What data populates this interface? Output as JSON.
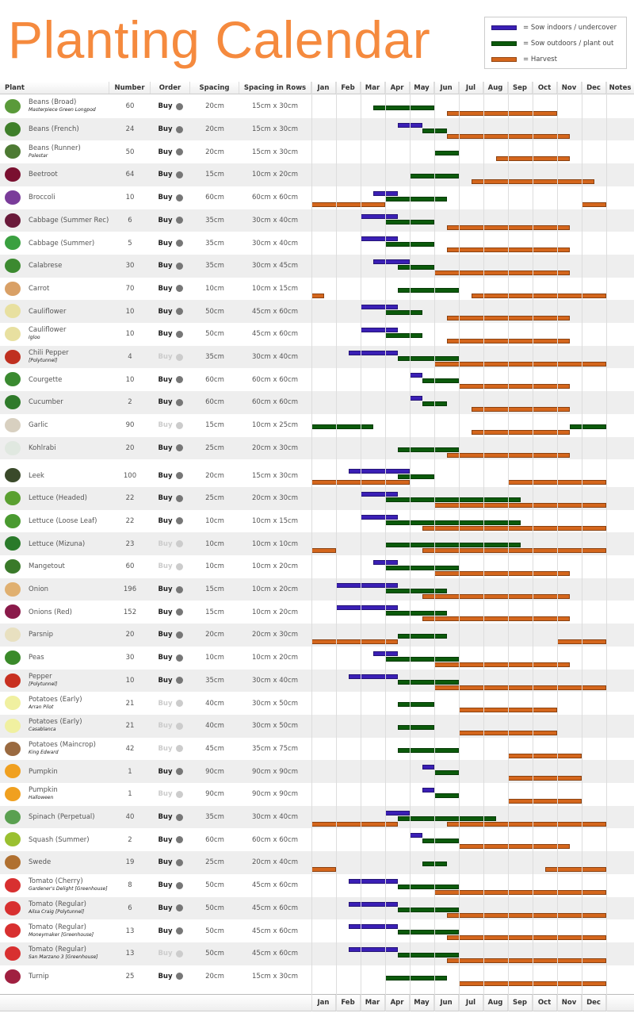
{
  "title": "Planting Calendar",
  "legend": [
    {
      "label": "= Sow indoors / undercover",
      "color": "#3a1fb5"
    },
    {
      "label": "= Sow outdoors / plant out",
      "color": "#0b5a0b"
    },
    {
      "label": "= Harvest",
      "color": "#d4661c"
    }
  ],
  "columns": {
    "plant": "Plant",
    "number": "Number",
    "order": "Order",
    "spacing": "Spacing",
    "rows": "Spacing in Rows",
    "notes": "Notes"
  },
  "months": [
    "Jan",
    "Feb",
    "Mar",
    "Apr",
    "May",
    "Jun",
    "Jul",
    "Aug",
    "Sep",
    "Oct",
    "Nov",
    "Dec"
  ],
  "buy_label": "Buy",
  "colors": {
    "sow_in": "#3a1fb5",
    "sow_out": "#0b5a0b",
    "harvest": "#d4661c",
    "title": "#f58a3e"
  },
  "chart_data": {
    "type": "gantt",
    "unit": "month position (1 = start of Jan, 13 = end of Dec)",
    "rows": [
      {
        "name": "Beans (Broad)",
        "sub": "Masterpiece Green Longpod",
        "number": "60",
        "buy": true,
        "spacing": "20cm",
        "rows": "15cm x 30cm",
        "icon": "broad-bean",
        "ic": "#5a9a3a",
        "in": [],
        "out": [
          [
            3.5,
            6
          ]
        ],
        "h": [
          [
            6.5,
            11
          ]
        ]
      },
      {
        "name": "Beans (French)",
        "sub": "",
        "number": "24",
        "buy": true,
        "spacing": "20cm",
        "rows": "15cm x 30cm",
        "icon": "french-bean",
        "ic": "#3f7f2a",
        "in": [
          [
            4.5,
            5.5
          ]
        ],
        "out": [
          [
            5.5,
            6.5
          ]
        ],
        "h": [
          [
            6.5,
            11.5
          ]
        ]
      },
      {
        "name": "Beans (Runner)",
        "sub": "Polestar",
        "number": "50",
        "buy": true,
        "spacing": "20cm",
        "rows": "15cm x 30cm",
        "icon": "runner-bean",
        "ic": "#4d7a33",
        "in": [],
        "out": [
          [
            6,
            7
          ]
        ],
        "h": [
          [
            8.5,
            11.5
          ]
        ]
      },
      {
        "name": "Beetroot",
        "sub": "",
        "number": "64",
        "buy": true,
        "spacing": "15cm",
        "rows": "10cm x 20cm",
        "icon": "beetroot",
        "ic": "#7a1030",
        "in": [],
        "out": [
          [
            5,
            7
          ]
        ],
        "h": [
          [
            7.5,
            12.5
          ]
        ]
      },
      {
        "name": "Broccoli",
        "sub": "",
        "number": "10",
        "buy": true,
        "spacing": "60cm",
        "rows": "60cm x 60cm",
        "icon": "broccoli",
        "ic": "#7a3c9a",
        "in": [
          [
            3.5,
            4.5
          ]
        ],
        "out": [
          [
            4,
            6.5
          ]
        ],
        "h": [
          [
            1,
            4
          ],
          [
            12,
            13
          ]
        ]
      },
      {
        "name": "Cabbage (Summer Rec)",
        "sub": "",
        "number": "6",
        "buy": true,
        "spacing": "35cm",
        "rows": "30cm x 40cm",
        "icon": "red-cabbage",
        "ic": "#6a1a3a",
        "in": [
          [
            3,
            4.5
          ]
        ],
        "out": [
          [
            4,
            6
          ]
        ],
        "h": [
          [
            6.5,
            11.5
          ]
        ]
      },
      {
        "name": "Cabbage (Summer)",
        "sub": "",
        "number": "5",
        "buy": true,
        "spacing": "35cm",
        "rows": "30cm x 40cm",
        "icon": "cabbage",
        "ic": "#3aa040",
        "in": [
          [
            3,
            4.5
          ]
        ],
        "out": [
          [
            4,
            6
          ]
        ],
        "h": [
          [
            6.5,
            11.5
          ]
        ]
      },
      {
        "name": "Calabrese",
        "sub": "",
        "number": "30",
        "buy": true,
        "spacing": "35cm",
        "rows": "30cm x 45cm",
        "icon": "calabrese",
        "ic": "#3c8a30",
        "in": [
          [
            3.5,
            5
          ]
        ],
        "out": [
          [
            4.5,
            6
          ]
        ],
        "h": [
          [
            6,
            11.5
          ]
        ]
      },
      {
        "name": "Carrot",
        "sub": "",
        "number": "70",
        "buy": true,
        "spacing": "10cm",
        "rows": "10cm x 15cm",
        "icon": "carrot",
        "ic": "#d9a066",
        "in": [],
        "out": [
          [
            4.5,
            7
          ]
        ],
        "h": [
          [
            1,
            1.5
          ],
          [
            7.5,
            13
          ]
        ]
      },
      {
        "name": "Cauliflower",
        "sub": "",
        "number": "10",
        "buy": true,
        "spacing": "50cm",
        "rows": "45cm x 60cm",
        "icon": "cauliflower",
        "ic": "#e8e0a0",
        "in": [
          [
            3,
            4.5
          ]
        ],
        "out": [
          [
            4,
            5.5
          ]
        ],
        "h": [
          [
            6.5,
            11.5
          ]
        ]
      },
      {
        "name": "Cauliflower",
        "sub": "Igloo",
        "number": "10",
        "buy": true,
        "spacing": "50cm",
        "rows": "45cm x 60cm",
        "icon": "cauliflower",
        "ic": "#e8e0a0",
        "in": [
          [
            3,
            4.5
          ]
        ],
        "out": [
          [
            4,
            5.5
          ]
        ],
        "h": [
          [
            6.5,
            11.5
          ]
        ]
      },
      {
        "name": "Chili Pepper",
        "sub": "[Polytunnel]",
        "number": "4",
        "buy": false,
        "spacing": "35cm",
        "rows": "30cm x 40cm",
        "icon": "chili",
        "ic": "#c03020",
        "in": [
          [
            2.5,
            4.5
          ]
        ],
        "out": [
          [
            4.5,
            7
          ]
        ],
        "h": [
          [
            6,
            13
          ]
        ]
      },
      {
        "name": "Courgette",
        "sub": "",
        "number": "10",
        "buy": true,
        "spacing": "60cm",
        "rows": "60cm x 60cm",
        "icon": "courgette",
        "ic": "#3a8a30",
        "in": [
          [
            5,
            5.5
          ]
        ],
        "out": [
          [
            5.5,
            7
          ]
        ],
        "h": [
          [
            7,
            11.5
          ]
        ]
      },
      {
        "name": "Cucumber",
        "sub": "",
        "number": "2",
        "buy": true,
        "spacing": "60cm",
        "rows": "60cm x 60cm",
        "icon": "cucumber",
        "ic": "#2f7a2a",
        "in": [
          [
            5,
            5.5
          ]
        ],
        "out": [
          [
            5.5,
            6.5
          ]
        ],
        "h": [
          [
            7.5,
            11.5
          ]
        ]
      },
      {
        "name": "Garlic",
        "sub": "",
        "number": "90",
        "buy": false,
        "spacing": "15cm",
        "rows": "10cm x 25cm",
        "icon": "garlic",
        "ic": "#d8d0c0",
        "in": [],
        "out": [
          [
            1,
            3.5
          ],
          [
            11.5,
            13
          ]
        ],
        "h": [
          [
            7.5,
            11.5
          ]
        ]
      },
      {
        "name": "Kohlrabi",
        "sub": "",
        "number": "20",
        "buy": true,
        "spacing": "25cm",
        "rows": "20cm x 30cm",
        "icon": "kohlrabi",
        "ic": "#e0e8e0",
        "in": [],
        "out": [
          [
            4.5,
            7
          ]
        ],
        "h": [
          [
            6.5,
            11.5
          ]
        ]
      },
      {
        "name": "Leek",
        "sub": "",
        "number": "100",
        "buy": true,
        "spacing": "20cm",
        "rows": "15cm x 30cm",
        "icon": "leek",
        "ic": "#3a4a2a",
        "in": [
          [
            2.5,
            5
          ]
        ],
        "out": [
          [
            4.5,
            6
          ]
        ],
        "h": [
          [
            1,
            5
          ],
          [
            9,
            13
          ]
        ]
      },
      {
        "name": "Lettuce (Headed)",
        "sub": "",
        "number": "22",
        "buy": true,
        "spacing": "25cm",
        "rows": "20cm x 30cm",
        "icon": "lettuce",
        "ic": "#5aa030",
        "in": [
          [
            3,
            4.5
          ]
        ],
        "out": [
          [
            4,
            9.5
          ]
        ],
        "h": [
          [
            6,
            13
          ]
        ]
      },
      {
        "name": "Lettuce (Loose Leaf)",
        "sub": "",
        "number": "22",
        "buy": true,
        "spacing": "10cm",
        "rows": "10cm x 15cm",
        "icon": "lettuce-leaf",
        "ic": "#4a9a30",
        "in": [
          [
            3,
            4.5
          ]
        ],
        "out": [
          [
            4,
            9.5
          ]
        ],
        "h": [
          [
            5.5,
            13
          ]
        ]
      },
      {
        "name": "Lettuce (Mizuna)",
        "sub": "",
        "number": "23",
        "buy": false,
        "spacing": "10cm",
        "rows": "10cm x 10cm",
        "icon": "mizuna",
        "ic": "#2a7a2a",
        "in": [],
        "out": [
          [
            4,
            9.5
          ]
        ],
        "h": [
          [
            1,
            2
          ],
          [
            5.5,
            13
          ]
        ]
      },
      {
        "name": "Mangetout",
        "sub": "",
        "number": "60",
        "buy": false,
        "spacing": "10cm",
        "rows": "10cm x 20cm",
        "icon": "mangetout",
        "ic": "#3a7a2a",
        "in": [
          [
            3.5,
            4.5
          ]
        ],
        "out": [
          [
            4,
            7
          ]
        ],
        "h": [
          [
            6,
            11.5
          ]
        ]
      },
      {
        "name": "Onion",
        "sub": "",
        "number": "196",
        "buy": true,
        "spacing": "15cm",
        "rows": "10cm x 20cm",
        "icon": "onion",
        "ic": "#e0b070",
        "in": [
          [
            2,
            4.5
          ]
        ],
        "out": [
          [
            4,
            6.5
          ]
        ],
        "h": [
          [
            5.5,
            11.5
          ]
        ]
      },
      {
        "name": "Onions (Red)",
        "sub": "",
        "number": "152",
        "buy": true,
        "spacing": "15cm",
        "rows": "10cm x 20cm",
        "icon": "red-onion",
        "ic": "#8a1a4a",
        "in": [
          [
            2,
            4.5
          ]
        ],
        "out": [
          [
            4,
            6.5
          ]
        ],
        "h": [
          [
            5.5,
            11.5
          ]
        ]
      },
      {
        "name": "Parsnip",
        "sub": "",
        "number": "20",
        "buy": true,
        "spacing": "20cm",
        "rows": "20cm x 30cm",
        "icon": "parsnip",
        "ic": "#e8e0c0",
        "in": [],
        "out": [
          [
            4.5,
            6.5
          ]
        ],
        "h": [
          [
            1,
            4.5
          ],
          [
            11,
            13
          ]
        ]
      },
      {
        "name": "Peas",
        "sub": "",
        "number": "30",
        "buy": true,
        "spacing": "10cm",
        "rows": "10cm x 20cm",
        "icon": "peas",
        "ic": "#3a8a2a",
        "in": [
          [
            3.5,
            4.5
          ]
        ],
        "out": [
          [
            4,
            7
          ]
        ],
        "h": [
          [
            6,
            11.5
          ]
        ]
      },
      {
        "name": "Pepper",
        "sub": "[Polytunnel]",
        "number": "10",
        "buy": true,
        "spacing": "35cm",
        "rows": "30cm x 40cm",
        "icon": "pepper",
        "ic": "#c83020",
        "in": [
          [
            2.5,
            4.5
          ]
        ],
        "out": [
          [
            4.5,
            7
          ]
        ],
        "h": [
          [
            6,
            13
          ]
        ]
      },
      {
        "name": "Potatoes (Early)",
        "sub": "Arran Pilot",
        "number": "21",
        "buy": false,
        "spacing": "40cm",
        "rows": "30cm x 50cm",
        "icon": "potato",
        "ic": "#f0f0a0",
        "in": [],
        "out": [
          [
            4.5,
            6
          ]
        ],
        "h": [
          [
            7,
            11
          ]
        ]
      },
      {
        "name": "Potatoes (Early)",
        "sub": "Casablanca",
        "number": "21",
        "buy": false,
        "spacing": "40cm",
        "rows": "30cm x 50cm",
        "icon": "potato",
        "ic": "#f0f0a0",
        "in": [],
        "out": [
          [
            4.5,
            6
          ]
        ],
        "h": [
          [
            7,
            11
          ]
        ]
      },
      {
        "name": "Potatoes (Maincrop)",
        "sub": "King Edward",
        "number": "42",
        "buy": false,
        "spacing": "45cm",
        "rows": "35cm x 75cm",
        "icon": "potato-maincrop",
        "ic": "#9a6a40",
        "in": [],
        "out": [
          [
            4.5,
            7
          ]
        ],
        "h": [
          [
            9,
            12
          ]
        ]
      },
      {
        "name": "Pumpkin",
        "sub": "",
        "number": "1",
        "buy": true,
        "spacing": "90cm",
        "rows": "90cm x 90cm",
        "icon": "pumpkin",
        "ic": "#f0a020",
        "in": [
          [
            5.5,
            6
          ]
        ],
        "out": [
          [
            6,
            7
          ]
        ],
        "h": [
          [
            9,
            12
          ]
        ]
      },
      {
        "name": "Pumpkin",
        "sub": "Halloween",
        "number": "1",
        "buy": false,
        "spacing": "90cm",
        "rows": "90cm x 90cm",
        "icon": "pumpkin",
        "ic": "#f0a020",
        "in": [
          [
            5.5,
            6
          ]
        ],
        "out": [
          [
            6,
            7
          ]
        ],
        "h": [
          [
            9,
            12
          ]
        ]
      },
      {
        "name": "Spinach (Perpetual)",
        "sub": "",
        "number": "40",
        "buy": true,
        "spacing": "35cm",
        "rows": "30cm x 40cm",
        "icon": "spinach",
        "ic": "#5aa050",
        "in": [
          [
            4,
            5
          ]
        ],
        "out": [
          [
            4.5,
            8.5
          ]
        ],
        "h": [
          [
            1,
            4.5
          ],
          [
            6.5,
            13
          ]
        ]
      },
      {
        "name": "Squash (Summer)",
        "sub": "",
        "number": "2",
        "buy": true,
        "spacing": "60cm",
        "rows": "60cm x 60cm",
        "icon": "squash",
        "ic": "#9ac030",
        "in": [
          [
            5,
            5.5
          ]
        ],
        "out": [
          [
            5.5,
            7
          ]
        ],
        "h": [
          [
            7,
            11.5
          ]
        ]
      },
      {
        "name": "Swede",
        "sub": "",
        "number": "19",
        "buy": true,
        "spacing": "25cm",
        "rows": "20cm x 40cm",
        "icon": "swede",
        "ic": "#b07030",
        "in": [],
        "out": [
          [
            5.5,
            6.5
          ]
        ],
        "h": [
          [
            1,
            2
          ],
          [
            10.5,
            13
          ]
        ]
      },
      {
        "name": "Tomato (Cherry)",
        "sub": "Gardener's Delight [Greenhouse]",
        "number": "8",
        "buy": true,
        "spacing": "50cm",
        "rows": "45cm x 60cm",
        "icon": "tomato-cherry",
        "ic": "#d83030",
        "in": [
          [
            2.5,
            4.5
          ]
        ],
        "out": [
          [
            4.5,
            7
          ]
        ],
        "h": [
          [
            6,
            13
          ]
        ]
      },
      {
        "name": "Tomato (Regular)",
        "sub": "Ailsa Craig [Polytunnel]",
        "number": "6",
        "buy": true,
        "spacing": "50cm",
        "rows": "45cm x 60cm",
        "icon": "tomato",
        "ic": "#d83030",
        "in": [
          [
            2.5,
            4.5
          ]
        ],
        "out": [
          [
            4.5,
            7
          ]
        ],
        "h": [
          [
            6.5,
            13
          ]
        ]
      },
      {
        "name": "Tomato (Regular)",
        "sub": "Moneymaker [Greenhouse]",
        "number": "13",
        "buy": true,
        "spacing": "50cm",
        "rows": "45cm x 60cm",
        "icon": "tomato",
        "ic": "#d83030",
        "in": [
          [
            2.5,
            4.5
          ]
        ],
        "out": [
          [
            4.5,
            7
          ]
        ],
        "h": [
          [
            6.5,
            13
          ]
        ]
      },
      {
        "name": "Tomato (Regular)",
        "sub": "San Marzano 3 [Greenhouse]",
        "number": "13",
        "buy": false,
        "spacing": "50cm",
        "rows": "45cm x 60cm",
        "icon": "tomato",
        "ic": "#d83030",
        "in": [
          [
            2.5,
            4.5
          ]
        ],
        "out": [
          [
            4.5,
            7
          ]
        ],
        "h": [
          [
            6.5,
            13
          ]
        ]
      },
      {
        "name": "Turnip",
        "sub": "",
        "number": "25",
        "buy": true,
        "spacing": "20cm",
        "rows": "15cm x 30cm",
        "icon": "turnip",
        "ic": "#a02040",
        "in": [],
        "out": [
          [
            4,
            6.5
          ]
        ],
        "h": [
          [
            7,
            13
          ]
        ]
      }
    ]
  }
}
